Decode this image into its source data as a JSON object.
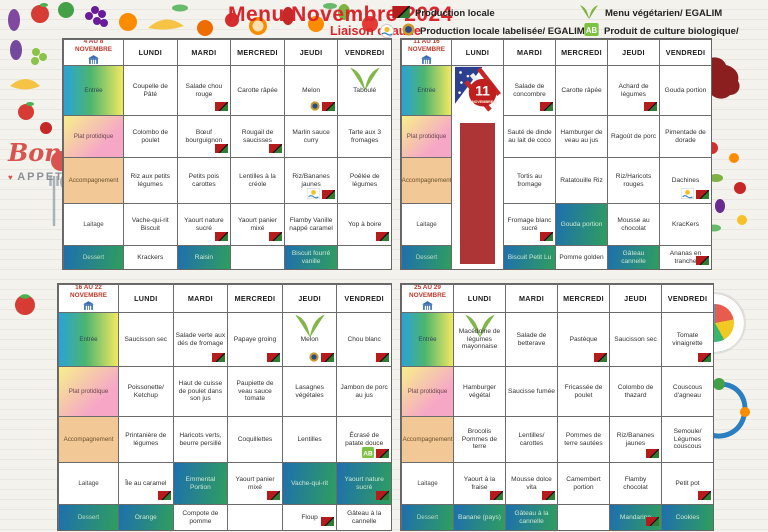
{
  "header": {
    "title": "Menu Novembre 2024",
    "subtitle": "Liaison chaude"
  },
  "legend": {
    "items": [
      {
        "icon": "martinique-flag-icon",
        "label": "Production locale"
      },
      {
        "icon": "vegetarian-v-icon",
        "label": "Menu végétarien/ EGALIM"
      },
      {
        "icon": "label-medallion-icon",
        "label": "Production locale labelisée/ EGALIM"
      },
      {
        "icon": "bio-ab-icon",
        "label": "Produit de culture biologique/"
      }
    ]
  },
  "decor": {
    "bon": "Bon",
    "appetit": "Appetit",
    "holiday": {
      "day": "11",
      "month": "NOVEMBRE"
    }
  },
  "row_labels": [
    "Entrée",
    "Plat protidique",
    "Accompagnement",
    "Laitage",
    "Dessert"
  ],
  "days": [
    "LUNDI",
    "MARDI",
    "MERCREDI",
    "JEUDI",
    "VENDREDI"
  ],
  "weeks": [
    {
      "label": "4 AU 8 NOVEMBRE",
      "holiday_col": null,
      "rows": [
        [
          {
            "t": "Coupelle de Pâté"
          },
          {
            "t": "Salade chou rouge",
            "i": [
              "flag"
            ]
          },
          {
            "t": "Carotte râpée"
          },
          {
            "t": "Melon",
            "i": [
              "label",
              "flag"
            ]
          },
          {
            "t": "Taboulé",
            "v": true
          }
        ],
        [
          {
            "t": "Colombo de poulet"
          },
          {
            "t": "Bœuf bourguignon",
            "i": [
              "flag"
            ]
          },
          {
            "t": "Rougail de saucisses",
            "i": [
              "flag"
            ]
          },
          {
            "t": "Marlin sauce curry"
          },
          {
            "t": "Tarte aux 3 fromages"
          }
        ],
        [
          {
            "t": "Riz aux petits légumes"
          },
          {
            "t": "Petits pois carottes"
          },
          {
            "t": "Lentilles à la créole"
          },
          {
            "t": "Riz/Bananes jaunes",
            "i": [
              "sun",
              "flag"
            ]
          },
          {
            "t": "Poêlée de légumes"
          }
        ],
        [
          {
            "t": "Vache-qui-rit Biscuit"
          },
          {
            "t": "Yaourt nature sucré",
            "i": [
              "flag"
            ]
          },
          {
            "t": "Yaourt panier mixé",
            "i": [
              "flag"
            ]
          },
          {
            "t": "Flamby Vanille nappé caramel"
          },
          {
            "t": "Yop à boire",
            "i": [
              "flag"
            ]
          }
        ],
        [
          {
            "t": "Krackers"
          },
          {
            "t": "Raisin",
            "h": true
          },
          {
            "t": ""
          },
          {
            "t": "Biscuit fourré vanille",
            "h": true
          },
          {
            "t": ""
          }
        ]
      ]
    },
    {
      "label": "11 AU 16 NOVEMBRE",
      "holiday_col": 0,
      "rows": [
        [
          {
            "t": ""
          },
          {
            "t": "Salade de concombre",
            "i": [
              "flag"
            ]
          },
          {
            "t": "Carotte râpée"
          },
          {
            "t": "Achard de légumes",
            "i": [
              "flag"
            ]
          },
          {
            "t": "Gouda portion"
          }
        ],
        [
          {
            "t": ""
          },
          {
            "t": "Sauté de dinde au lait de coco"
          },
          {
            "t": "Hamburger de veau au jus"
          },
          {
            "t": "Ragoût de porc"
          },
          {
            "t": "Pimentade de dorade"
          }
        ],
        [
          {
            "t": ""
          },
          {
            "t": "Tortis au fromage"
          },
          {
            "t": "Ratatouille Riz"
          },
          {
            "t": "Riz/Haricots rouges"
          },
          {
            "t": "Dachines",
            "i": [
              "sun",
              "flag"
            ]
          }
        ],
        [
          {
            "t": ""
          },
          {
            "t": "Fromage blanc sucré",
            "i": [
              "flag"
            ]
          },
          {
            "t": "Gouda portion",
            "h": true
          },
          {
            "t": "Mousse au chocolat"
          },
          {
            "t": "KracKers"
          }
        ],
        [
          {
            "t": ""
          },
          {
            "t": "Biscuit Petit Lu",
            "h": true
          },
          {
            "t": "Pomme golden"
          },
          {
            "t": "Gâteau cannelle",
            "h": true
          },
          {
            "t": "Ananas en tranche",
            "i": [
              "flag"
            ]
          }
        ]
      ]
    },
    {
      "label": "16 AU 22 NOVEMBRE",
      "holiday_col": null,
      "rows": [
        [
          {
            "t": "Saucisson sec"
          },
          {
            "t": "Salade verte aux dés de fromage",
            "i": [
              "flag"
            ]
          },
          {
            "t": "Papaye groing",
            "i": [
              "flag"
            ]
          },
          {
            "t": "Melon",
            "v": true,
            "i": [
              "label",
              "flag"
            ]
          },
          {
            "t": "Chou blanc",
            "i": [
              "flag"
            ]
          }
        ],
        [
          {
            "t": "Poissonette/ Ketchup"
          },
          {
            "t": "Haut de cuisse de poulet dans son jus"
          },
          {
            "t": "Paupiette de veau sauce tomate"
          },
          {
            "t": "Lasagnes végétales"
          },
          {
            "t": "Jambon de porc au jus"
          }
        ],
        [
          {
            "t": "Printanière de légumes"
          },
          {
            "t": "Haricots verts, beurre persillé"
          },
          {
            "t": "Coquillettes"
          },
          {
            "t": "Lentilles"
          },
          {
            "t": "Écrasé de patate douce",
            "i": [
              "bio",
              "flag"
            ]
          }
        ],
        [
          {
            "t": "Île au caramel",
            "i": [
              "flag"
            ]
          },
          {
            "t": "Emmental Portion",
            "h": true
          },
          {
            "t": "Yaourt panier mixé",
            "i": [
              "flag"
            ]
          },
          {
            "t": "Vache-qui-rit",
            "h": true
          },
          {
            "t": "Yaourt nature sucré",
            "h": true,
            "i": [
              "flag"
            ]
          }
        ],
        [
          {
            "t": "Orange",
            "h": true
          },
          {
            "t": "Compote de pomme"
          },
          {
            "t": ""
          },
          {
            "t": "Floup",
            "i": [
              "flag"
            ]
          },
          {
            "t": "Gâteau à la cannelle"
          }
        ]
      ]
    },
    {
      "label": "25 AU 29 NOVEMBRE",
      "holiday_col": null,
      "rows": [
        [
          {
            "t": "Macédoine de légumes mayonnaise",
            "v": true
          },
          {
            "t": "Salade de betterave"
          },
          {
            "t": "Pastèque",
            "i": [
              "flag"
            ]
          },
          {
            "t": "Saucisson sec"
          },
          {
            "t": "Tomate vinaigrette",
            "i": [
              "flag"
            ]
          }
        ],
        [
          {
            "t": "Hamburger végétal"
          },
          {
            "t": "Saucisse fumée"
          },
          {
            "t": "Fricassée de poulet"
          },
          {
            "t": "Colombo de thazard"
          },
          {
            "t": "Couscous d'agneau"
          }
        ],
        [
          {
            "t": "Brocolis Pommes de terre"
          },
          {
            "t": "Lentilles/ carottes"
          },
          {
            "t": "Pommes de terre sautées"
          },
          {
            "t": "Riz/Bananes jaunes",
            "i": [
              "flag"
            ]
          },
          {
            "t": "Semoule/ Légumes couscous"
          }
        ],
        [
          {
            "t": "Yaourt à la fraise",
            "i": [
              "flag"
            ]
          },
          {
            "t": "Mousse dolce vita",
            "i": [
              "flag"
            ]
          },
          {
            "t": "Camembert portion"
          },
          {
            "t": "Flamby chocolat"
          },
          {
            "t": "Petit pot",
            "i": [
              "flag"
            ]
          }
        ],
        [
          {
            "t": "Banane (pays)",
            "h": true
          },
          {
            "t": "Gâteau à la cannelle",
            "h": true
          },
          {
            "t": ""
          },
          {
            "t": "Mandarine",
            "h": true,
            "i": [
              "flag"
            ]
          },
          {
            "t": "Cookies",
            "h": true
          }
        ]
      ]
    }
  ]
}
